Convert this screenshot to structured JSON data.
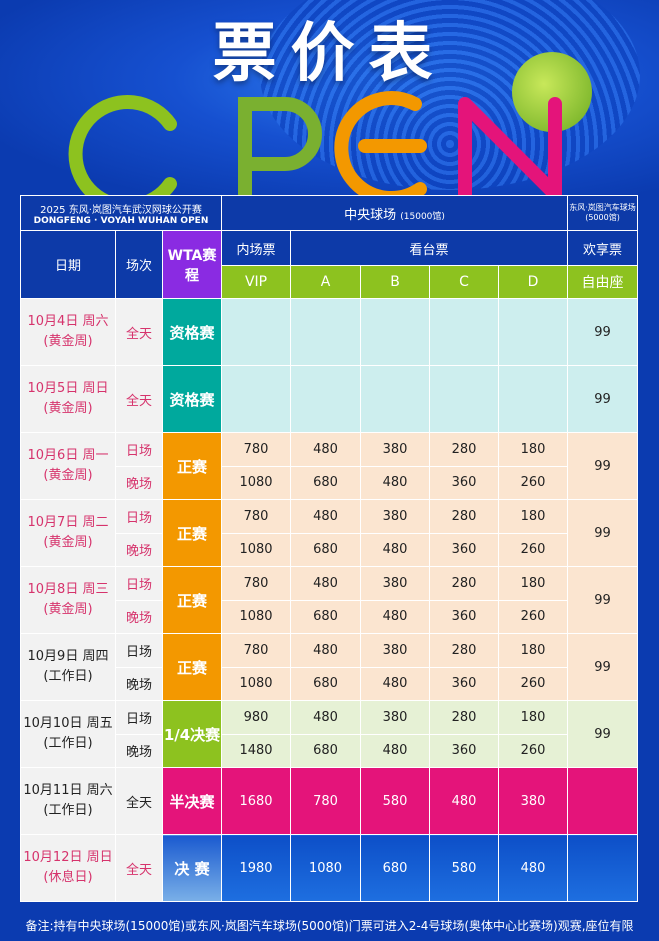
{
  "title": "票价表",
  "logo_text": "OPEN",
  "header": {
    "event_cn": "2025 东风·岚图汽车武汉网球公开赛",
    "event_en": "DONGFENG · VOYAH WUHAN OPEN",
    "center_court": "中央球场",
    "center_court_cap": "(15000馆)",
    "voyah_court": "东风·岚图汽车球场",
    "voyah_court_cap": "(5000馆)",
    "date": "日期",
    "session": "场次",
    "wta": "WTA赛程",
    "inner": "内场票",
    "stand": "看台票",
    "fan": "欢享票",
    "vip": "VIP",
    "a": "A",
    "b": "B",
    "c": "C",
    "d": "D",
    "free": "自由座"
  },
  "colors": {
    "header": "#0d3aa8",
    "green": "#8dc21f",
    "purple": "#8a2be2",
    "qual": "#00a99d",
    "main": "#f39800",
    "quarter": "#8dc21f",
    "semi": "#e4147a",
    "final": "#0d4fc8"
  },
  "rows": [
    {
      "date": "10月4日  周六",
      "note": "(黄金周)",
      "gold": true,
      "stage": "资格赛",
      "type": "qual",
      "sessions": [
        {
          "name": "全天",
          "prices": [
            "",
            "",
            "",
            "",
            ""
          ]
        }
      ],
      "fan": "99"
    },
    {
      "date": "10月5日  周日",
      "note": "(黄金周)",
      "gold": true,
      "stage": "资格赛",
      "type": "qual",
      "sessions": [
        {
          "name": "全天",
          "prices": [
            "",
            "",
            "",
            "",
            ""
          ]
        }
      ],
      "fan": "99"
    },
    {
      "date": "10月6日  周一",
      "note": "(黄金周)",
      "gold": true,
      "stage": "正赛",
      "type": "main",
      "sessions": [
        {
          "name": "日场",
          "prices": [
            "780",
            "480",
            "380",
            "280",
            "180"
          ]
        },
        {
          "name": "晚场",
          "prices": [
            "1080",
            "680",
            "480",
            "360",
            "260"
          ]
        }
      ],
      "fan": "99"
    },
    {
      "date": "10月7日  周二",
      "note": "(黄金周)",
      "gold": true,
      "stage": "正赛",
      "type": "main",
      "sessions": [
        {
          "name": "日场",
          "prices": [
            "780",
            "480",
            "380",
            "280",
            "180"
          ]
        },
        {
          "name": "晚场",
          "prices": [
            "1080",
            "680",
            "480",
            "360",
            "260"
          ]
        }
      ],
      "fan": "99"
    },
    {
      "date": "10月8日  周三",
      "note": "(黄金周)",
      "gold": true,
      "stage": "正赛",
      "type": "main",
      "sessions": [
        {
          "name": "日场",
          "prices": [
            "780",
            "480",
            "380",
            "280",
            "180"
          ]
        },
        {
          "name": "晚场",
          "prices": [
            "1080",
            "680",
            "480",
            "360",
            "260"
          ]
        }
      ],
      "fan": "99"
    },
    {
      "date": "10月9日  周四",
      "note": "(工作日)",
      "gold": false,
      "stage": "正赛",
      "type": "main",
      "sessions": [
        {
          "name": "日场",
          "prices": [
            "780",
            "480",
            "380",
            "280",
            "180"
          ]
        },
        {
          "name": "晚场",
          "prices": [
            "1080",
            "680",
            "480",
            "360",
            "260"
          ]
        }
      ],
      "fan": "99"
    },
    {
      "date": "10月10日 周五",
      "note": "(工作日)",
      "gold": false,
      "stage": "1/4决赛",
      "type": "quarter",
      "sessions": [
        {
          "name": "日场",
          "prices": [
            "980",
            "480",
            "380",
            "280",
            "180"
          ]
        },
        {
          "name": "晚场",
          "prices": [
            "1480",
            "680",
            "480",
            "360",
            "260"
          ]
        }
      ],
      "fan": "99"
    },
    {
      "date": "10月11日 周六",
      "note": "(工作日)",
      "gold": false,
      "stage": "半决赛",
      "type": "semi",
      "sessions": [
        {
          "name": "全天",
          "prices": [
            "1680",
            "780",
            "580",
            "480",
            "380"
          ]
        }
      ],
      "fan": ""
    },
    {
      "date": "10月12日 周日",
      "note": "(休息日)",
      "gold": true,
      "stage": "决  赛",
      "type": "final",
      "sessions": [
        {
          "name": "全天",
          "prices": [
            "1980",
            "1080",
            "680",
            "580",
            "480"
          ]
        }
      ],
      "fan": ""
    }
  ],
  "footnote": "备注:持有中央球场(15000馆)或东风·岚图汽车球场(5000馆)门票可进入2-4号球场(奥体中心比赛场)观赛,座位有限"
}
